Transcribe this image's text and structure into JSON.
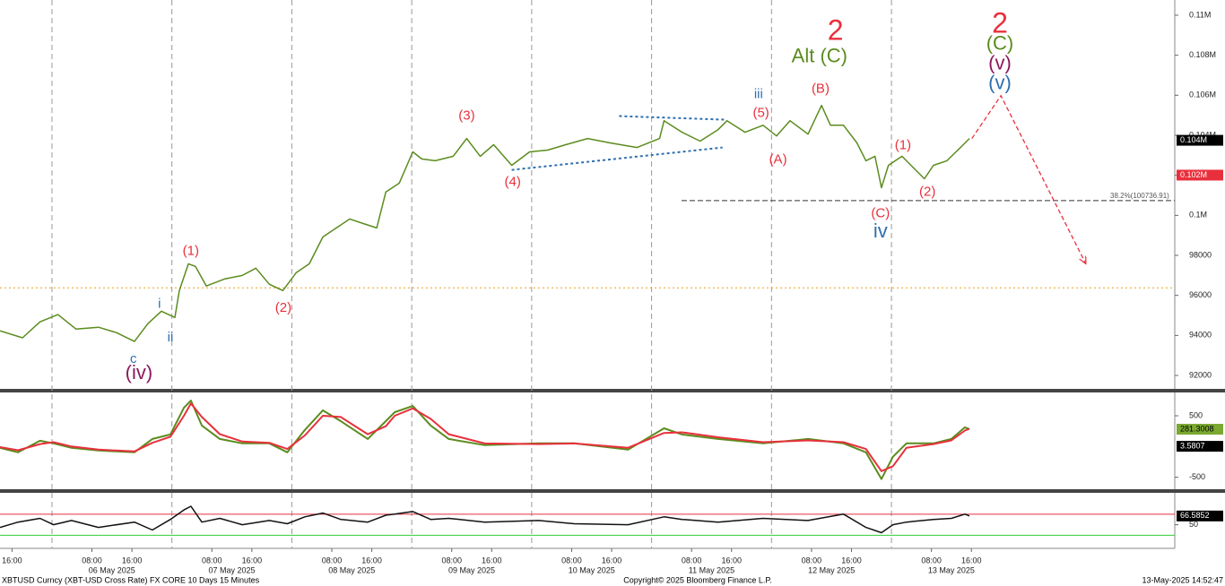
{
  "footer": {
    "left": "XBTUSD Curncy (XBT-USD Cross Rate) FX CORE 10 Days 15 Minutes",
    "center": "Copyright© 2025 Bloomberg Finance L.P.",
    "right": "13-May-2025 14:52:47"
  },
  "chart_data": [
    {
      "type": "line",
      "color": "#5b8c1e",
      "xlim": [
        13.6,
        248.7
      ],
      "ylim": [
        91330,
        110760
      ],
      "day_lines": [
        24,
        48,
        72,
        96,
        120,
        144,
        168,
        192
      ],
      "x": [
        13.6,
        18.1,
        21.6,
        25.2,
        28.8,
        33.3,
        36.9,
        40.5,
        43.2,
        45.9,
        48.6,
        49.5,
        51.3,
        52.7,
        54.9,
        58.5,
        62.1,
        64.8,
        67.5,
        70.2,
        72.9,
        75.5,
        78.2,
        80.9,
        83.6,
        86.3,
        89.0,
        90.8,
        93.5,
        96.2,
        98.0,
        100.7,
        104.3,
        107.0,
        109.7,
        112.4,
        116.0,
        119.6,
        123.2,
        126.8,
        131.2,
        135.7,
        141.1,
        145.6,
        146.5,
        150.1,
        153.7,
        157.3,
        159.1,
        162.7,
        166.3,
        169.0,
        171.7,
        175.3,
        178.0,
        179.8,
        182.4,
        185.1,
        186.9,
        188.7,
        190.0,
        191.4,
        194.1,
        195.9,
        198.6,
        200.4,
        203.1,
        205.8,
        207.6
      ],
      "values": [
        94230,
        93880,
        94680,
        95040,
        94320,
        94410,
        94140,
        93700,
        94590,
        95210,
        94900,
        96240,
        97580,
        97450,
        96470,
        96820,
        97000,
        97360,
        96560,
        96240,
        97140,
        97580,
        98920,
        99370,
        99820,
        99590,
        99370,
        101160,
        101610,
        103170,
        102820,
        102730,
        102950,
        103840,
        102950,
        103530,
        102500,
        103170,
        103260,
        103530,
        103840,
        103620,
        103390,
        103840,
        104730,
        104150,
        103710,
        104280,
        104730,
        104150,
        104500,
        103970,
        104730,
        104060,
        105490,
        104500,
        104500,
        103620,
        102730,
        102950,
        101380,
        102500,
        102950,
        102500,
        101830,
        102500,
        102730,
        103390,
        103840
      ],
      "yticks": [
        92000,
        94000,
        96000,
        98000,
        {
          "value": 100000,
          "label": "0.1M"
        },
        {
          "value": 102000,
          "label": "0.102M"
        },
        {
          "value": 104000,
          "label": "0.104M"
        },
        {
          "value": 106000,
          "label": "0.106M"
        },
        {
          "value": 108000,
          "label": "0.108M"
        },
        {
          "value": 110000,
          "label": "0.11M"
        }
      ],
      "hlines": [
        {
          "value": 96380,
          "color": "#e8a020",
          "style": "dotted"
        },
        {
          "value": 100736.91,
          "label": "38.2%(100736.91)",
          "color": "#333333",
          "style": "dashed"
        }
      ],
      "tags": [
        {
          "value": 103750,
          "label": "0.104M",
          "color": "#000000",
          "text_color": "#ffffff"
        },
        {
          "value": 102010,
          "label": "0.102M",
          "color": "#e8303c",
          "text_color": "#ffffff"
        }
      ],
      "trendlines": [
        {
          "x": [
            137.5,
            158.7
          ],
          "y": [
            104960,
            104780
          ],
          "color": "#2f6fae"
        },
        {
          "x": [
            116.0,
            158.2
          ],
          "y": [
            102270,
            103390
          ],
          "color": "#2f6fae"
        }
      ],
      "projection": {
        "x": [
          208.1,
          213.9,
          230.9
        ],
        "y": [
          103840,
          105980,
          97580
        ],
        "color": "#e8303c"
      },
      "annotations": [
        {
          "text": "c",
          "x": 40.3,
          "y": 92800,
          "color": "#2f6fae",
          "style": "small"
        },
        {
          "text": "(iv)",
          "x": 41.4,
          "y": 92090,
          "color": "#8b1a5c",
          "style": "medium"
        },
        {
          "text": "i",
          "x": 45.5,
          "y": 95570,
          "color": "#2f6fae",
          "style": "small"
        },
        {
          "text": "ii",
          "x": 47.7,
          "y": 93880,
          "color": "#2f6fae",
          "style": "small"
        },
        {
          "text": "(1)",
          "x": 51.8,
          "y": 98210,
          "color": "#e8303c",
          "style": "small"
        },
        {
          "text": "(2)",
          "x": 70.3,
          "y": 95350,
          "color": "#e8303c",
          "style": "small"
        },
        {
          "text": "(3)",
          "x": 107.0,
          "y": 104950,
          "color": "#e8303c",
          "style": "small"
        },
        {
          "text": "(4)",
          "x": 116.2,
          "y": 101650,
          "color": "#e8303c",
          "style": "small"
        },
        {
          "text": "iii",
          "x": 165.4,
          "y": 106030,
          "color": "#2f6fae",
          "style": "small"
        },
        {
          "text": "(5)",
          "x": 165.9,
          "y": 105090,
          "color": "#e8303c",
          "style": "small"
        },
        {
          "text": "(A)",
          "x": 169.3,
          "y": 102770,
          "color": "#e8303c",
          "style": "small"
        },
        {
          "text": "Alt (C)",
          "x": 177.6,
          "y": 107900,
          "color": "#5b8c1e",
          "style": "medium"
        },
        {
          "text": "2",
          "x": 180.8,
          "y": 109150,
          "color": "#e8303c",
          "style": "large"
        },
        {
          "text": "(B)",
          "x": 177.8,
          "y": 106300,
          "color": "#e8303c",
          "style": "small"
        },
        {
          "text": "(C)",
          "x": 189.8,
          "y": 100080,
          "color": "#e8303c",
          "style": "small"
        },
        {
          "text": "iv",
          "x": 189.8,
          "y": 99150,
          "color": "#2f6fae",
          "style": "medium"
        },
        {
          "text": "(1)",
          "x": 194.3,
          "y": 103480,
          "color": "#e8303c",
          "style": "small"
        },
        {
          "text": "(2)",
          "x": 199.2,
          "y": 101160,
          "color": "#e8303c",
          "style": "small"
        },
        {
          "text": "2",
          "x": 213.7,
          "y": 109510,
          "color": "#e8303c",
          "style": "large"
        },
        {
          "text": "(C)",
          "x": 213.7,
          "y": 108525,
          "color": "#5b8c1e",
          "style": "medium"
        },
        {
          "text": "(v)",
          "x": 213.7,
          "y": 107540,
          "color": "#8b1a5c",
          "style": "medium"
        },
        {
          "text": "(v)",
          "x": 213.7,
          "y": 106560,
          "color": "#2f6fae",
          "style": "medium"
        }
      ]
    },
    {
      "type": "line",
      "xlim": [
        13.6,
        248.7
      ],
      "ylim": [
        -680,
        850
      ],
      "yticks": [
        -500,
        500
      ],
      "x": [
        13.6,
        17.2,
        21.6,
        24.3,
        27.9,
        33.3,
        40.5,
        44.1,
        47.7,
        50.4,
        51.8,
        54.0,
        57.6,
        62.1,
        67.5,
        71.1,
        74.6,
        78.2,
        81.8,
        87.2,
        90.8,
        92.6,
        96.2,
        99.8,
        103.4,
        110.6,
        121.4,
        128.5,
        139.3,
        146.5,
        150.1,
        157.3,
        166.3,
        175.3,
        182.4,
        186.9,
        190.0,
        192.3,
        195.0,
        200.4,
        204.0,
        206.7,
        207.6
      ],
      "series": [
        {
          "color": "#5b8c1e",
          "values": [
            -22,
            -94,
            94,
            51,
            -22,
            -65,
            -94,
            123,
            196,
            630,
            746,
            341,
            123,
            51,
            51,
            -94,
            268,
            587,
            413,
            123,
            413,
            558,
            659,
            341,
            123,
            22,
            51,
            51,
            -51,
            297,
            196,
            123,
            51,
            123,
            51,
            -94,
            -529,
            -167,
            51,
            51,
            123,
            312,
            283
          ]
        },
        {
          "color": "#e8303c",
          "values": [
            -10,
            -60,
            40,
            70,
            0,
            -50,
            -80,
            60,
            160,
            500,
            700,
            480,
            200,
            80,
            60,
            -40,
            180,
            500,
            480,
            200,
            330,
            500,
            620,
            450,
            200,
            50,
            40,
            50,
            -20,
            220,
            230,
            150,
            70,
            100,
            70,
            -40,
            -400,
            -320,
            -20,
            40,
            100,
            260,
            290
          ]
        }
      ],
      "tags": [
        {
          "value": 281.3008,
          "color": "#7aa830",
          "text_color": "#000000"
        },
        {
          "value": 3.5807,
          "color": "#000000",
          "text_color": "#ffffff"
        }
      ]
    },
    {
      "type": "line",
      "color": "#111111",
      "xlim": [
        13.6,
        248.7
      ],
      "ylim": [
        7,
        107
      ],
      "yticks": [
        50
      ],
      "x": [
        13.6,
        17.2,
        21.6,
        24.3,
        27.9,
        33.3,
        40.5,
        44.1,
        47.7,
        50.4,
        51.8,
        54.0,
        57.6,
        62.1,
        67.5,
        71.1,
        74.6,
        78.2,
        81.8,
        87.2,
        90.8,
        92.6,
        96.2,
        99.8,
        103.4,
        110.6,
        121.4,
        128.5,
        139.3,
        146.5,
        150.1,
        157.3,
        166.3,
        175.3,
        182.4,
        186.9,
        190.0,
        192.3,
        195.0,
        200.4,
        204.0,
        206.7,
        207.6
      ],
      "values": [
        45,
        55,
        62,
        50,
        58,
        45,
        55,
        40,
        60,
        78,
        85,
        55,
        62,
        50,
        58,
        52,
        65,
        72,
        60,
        55,
        68,
        70,
        75,
        60,
        62,
        55,
        58,
        52,
        50,
        65,
        60,
        55,
        62,
        58,
        70,
        45,
        35,
        50,
        55,
        60,
        62,
        70,
        66.6
      ],
      "hlines": [
        {
          "value": 70,
          "color": "#e8303c",
          "style": "solid"
        },
        {
          "value": 30,
          "color": "#33cc33",
          "style": "solid"
        }
      ],
      "tags": [
        {
          "value": 66.5852,
          "color": "#000000",
          "text_color": "#ffffff"
        }
      ],
      "xticks": [
        {
          "value": 16,
          "label": "16:00"
        },
        {
          "value": 32,
          "label": "08:00"
        },
        {
          "value": 40,
          "label": "16:00"
        },
        {
          "value": 56,
          "label": "08:00"
        },
        {
          "value": 64,
          "label": "16:00"
        },
        {
          "value": 80,
          "label": "08:00"
        },
        {
          "value": 88,
          "label": "16:00"
        },
        {
          "value": 104,
          "label": "08:00"
        },
        {
          "value": 112,
          "label": "16:00"
        },
        {
          "value": 128,
          "label": "08:00"
        },
        {
          "value": 136,
          "label": "16:00"
        },
        {
          "value": 152,
          "label": "08:00"
        },
        {
          "value": 160,
          "label": "16:00"
        },
        {
          "value": 176,
          "label": "08:00"
        },
        {
          "value": 184,
          "label": "16:00"
        },
        {
          "value": 200,
          "label": "08:00"
        },
        {
          "value": 208,
          "label": "16:00"
        }
      ],
      "date_ticks": [
        {
          "value": 36,
          "label": "06 May 2025"
        },
        {
          "value": 60,
          "label": "07 May 2025"
        },
        {
          "value": 84,
          "label": "08 May 2025"
        },
        {
          "value": 108,
          "label": "09 May 2025"
        },
        {
          "value": 132,
          "label": "10 May 2025"
        },
        {
          "value": 156,
          "label": "11 May 2025"
        },
        {
          "value": 180,
          "label": "12 May 2025"
        },
        {
          "value": 204,
          "label": "13 May 2025"
        }
      ]
    }
  ]
}
